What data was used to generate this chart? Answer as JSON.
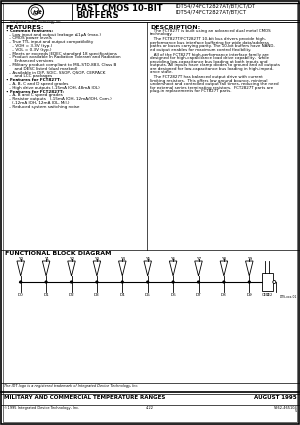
{
  "title_left1": "FAST CMOS 10-BIT",
  "title_left2": "BUFFERS",
  "title_right1": "IDT54/74FCT2827AT/BT/CT/DT",
  "title_right2": "IDT54/74FCT2827AT/BT/CT",
  "company": "Integrated Device Technology, Inc.",
  "features_title": "FEATURES:",
  "description_title": "DESCRIPTION:",
  "functional_title": "FUNCTIONAL BLOCK DIAGRAM",
  "y_labels": [
    "Y0",
    "Y1",
    "Y2",
    "Y3",
    "Y4",
    "Y5",
    "Y6",
    "Y7",
    "Y8",
    "Y9"
  ],
  "d_labels": [
    "D0",
    "D1",
    "D2",
    "D3",
    "D4",
    "D5",
    "D6",
    "D7",
    "D8",
    "D9"
  ],
  "footer_trademark": "The IDT logo is a registered trademark of Integrated Device Technology, Inc.",
  "footer_title": "MILITARY AND COMMERCIAL TEMPERATURE RANGES",
  "footer_date": "AUGUST 1995",
  "footer_company": "©1995 Integrated Device Technology, Inc.",
  "footer_page": "4-22",
  "footer_doc": "5962-465104",
  "background": "#ffffff",
  "watermark_color": "#b0c8e0"
}
